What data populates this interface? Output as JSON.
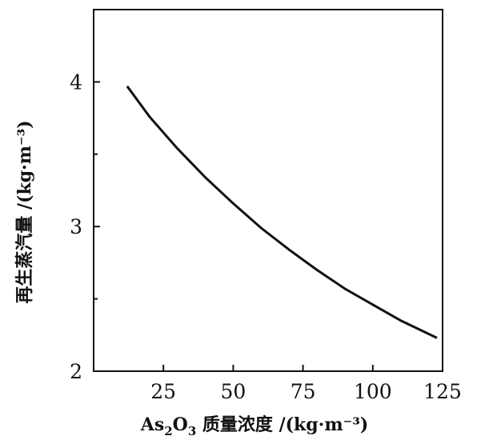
{
  "chart_data": {
    "type": "line",
    "xlabel": {
      "prefix": "As",
      "sub1": "2",
      "mid": "O",
      "sub2": "3",
      "suffix": " 质量浓度 /(kg·m⁻³)"
    },
    "ylabel": "再生蒸汽量 /(kg·m⁻³)",
    "xlim": [
      0,
      125
    ],
    "ylim": [
      2,
      4.5
    ],
    "x_ticks": [
      25,
      50,
      75,
      100,
      125
    ],
    "y_ticks": [
      2,
      3,
      4
    ],
    "grid": false,
    "series": [
      {
        "x": [
          12,
          20,
          30,
          40,
          50,
          60,
          70,
          80,
          90,
          100,
          110,
          123
        ],
        "values": [
          3.97,
          3.76,
          3.54,
          3.34,
          3.16,
          2.99,
          2.84,
          2.7,
          2.57,
          2.46,
          2.35,
          2.23
        ]
      }
    ]
  }
}
